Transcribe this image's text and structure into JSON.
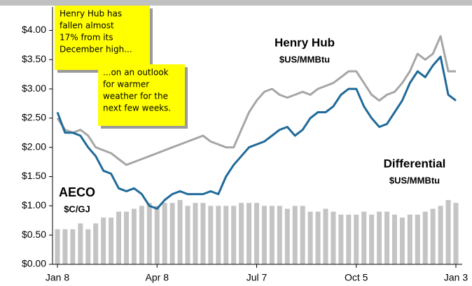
{
  "chart_data": {
    "type": "line",
    "categories": [
      "Jan 8",
      null,
      null,
      null,
      null,
      null,
      null,
      null,
      null,
      null,
      null,
      null,
      null,
      "Apr 8",
      null,
      null,
      null,
      null,
      null,
      null,
      null,
      null,
      null,
      null,
      null,
      null,
      "Jul 7",
      null,
      null,
      null,
      null,
      null,
      null,
      null,
      null,
      null,
      null,
      null,
      null,
      "Oct 5",
      null,
      null,
      null,
      null,
      null,
      null,
      null,
      null,
      null,
      null,
      null,
      null,
      "Jan 3"
    ],
    "series": [
      {
        "name": "Henry Hub",
        "unit": "$US/MMBtu",
        "type": "line",
        "color": "#a6a6a6",
        "values": [
          2.5,
          2.3,
          2.25,
          2.3,
          2.2,
          2.0,
          1.95,
          1.9,
          1.8,
          1.7,
          1.75,
          1.8,
          1.85,
          1.9,
          1.95,
          2.0,
          2.05,
          2.1,
          2.15,
          2.2,
          2.1,
          2.05,
          2.0,
          2.0,
          2.3,
          2.6,
          2.8,
          2.95,
          3.0,
          2.9,
          2.85,
          2.9,
          2.95,
          2.9,
          3.0,
          3.05,
          3.1,
          3.2,
          3.3,
          3.3,
          3.1,
          2.9,
          2.8,
          2.9,
          2.95,
          3.1,
          3.3,
          3.6,
          3.5,
          3.6,
          3.9,
          3.3,
          3.3
        ]
      },
      {
        "name": "AECO",
        "unit": "$C/GJ",
        "type": "line",
        "color": "#1f6a99",
        "values": [
          2.6,
          2.25,
          2.25,
          2.2,
          2.0,
          1.85,
          1.6,
          1.55,
          1.3,
          1.25,
          1.3,
          1.2,
          1.0,
          0.95,
          1.1,
          1.2,
          1.25,
          1.2,
          1.2,
          1.2,
          1.25,
          1.2,
          1.5,
          1.7,
          1.85,
          2.0,
          2.05,
          2.1,
          2.2,
          2.3,
          2.35,
          2.2,
          2.3,
          2.5,
          2.6,
          2.6,
          2.7,
          2.9,
          3.0,
          3.0,
          2.7,
          2.5,
          2.35,
          2.4,
          2.6,
          2.8,
          3.1,
          3.3,
          3.2,
          3.4,
          3.55,
          2.9,
          2.8
        ]
      },
      {
        "name": "Differential",
        "unit": "$US/MMBtu",
        "type": "bar",
        "color": "#c4c4c4",
        "values": [
          0.6,
          0.6,
          0.6,
          0.7,
          0.6,
          0.7,
          0.8,
          0.8,
          0.9,
          0.9,
          0.95,
          1.0,
          1.05,
          1.0,
          1.05,
          1.05,
          1.1,
          1.0,
          1.05,
          1.05,
          1.0,
          1.0,
          1.0,
          1.0,
          1.05,
          1.05,
          1.05,
          1.0,
          1.0,
          1.0,
          0.95,
          1.0,
          1.0,
          0.9,
          0.9,
          0.95,
          0.9,
          0.85,
          0.85,
          0.85,
          0.9,
          0.85,
          0.9,
          0.9,
          0.85,
          0.8,
          0.85,
          0.85,
          0.9,
          0.95,
          1.0,
          1.1,
          1.05
        ]
      }
    ],
    "ylim": [
      0,
      4.4
    ],
    "yticks": [
      {
        "value": 0,
        "label": "$0.00"
      },
      {
        "value": 0.5,
        "label": "$0.50"
      },
      {
        "value": 1,
        "label": "$1.00"
      },
      {
        "value": 1.5,
        "label": "$1.50"
      },
      {
        "value": 2,
        "label": "$2.00"
      },
      {
        "value": 2.5,
        "label": "$2.50"
      },
      {
        "value": 3,
        "label": "$3.00"
      },
      {
        "value": 3.5,
        "label": "$3.50"
      },
      {
        "value": 4,
        "label": "$4.00"
      }
    ],
    "annotations": [
      {
        "lines": [
          "Henry Hub has",
          "fallen almost",
          "17% from its",
          "December high..."
        ]
      },
      {
        "lines": [
          "...on an outlook",
          "for warmer",
          "weather for the",
          "next few weeks."
        ]
      }
    ]
  }
}
